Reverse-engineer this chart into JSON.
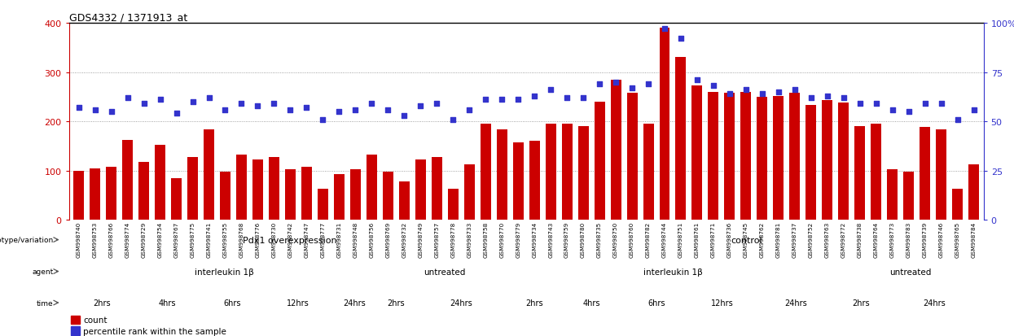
{
  "title": "GDS4332 / 1371913_at",
  "bar_color": "#cc0000",
  "dot_color": "#3333cc",
  "ylim_left": [
    0,
    400
  ],
  "ylim_right": [
    0,
    100
  ],
  "yticks_left": [
    0,
    100,
    200,
    300,
    400
  ],
  "yticks_right": [
    0,
    25,
    50,
    75,
    100
  ],
  "samples": [
    "GSM998740",
    "GSM998753",
    "GSM998766",
    "GSM998774",
    "GSM998729",
    "GSM998754",
    "GSM998767",
    "GSM998775",
    "GSM998741",
    "GSM998755",
    "GSM998768",
    "GSM998776",
    "GSM998730",
    "GSM998742",
    "GSM998747",
    "GSM998777",
    "GSM998731",
    "GSM998748",
    "GSM998756",
    "GSM998769",
    "GSM998732",
    "GSM998749",
    "GSM998757",
    "GSM998778",
    "GSM998733",
    "GSM998758",
    "GSM998770",
    "GSM998779",
    "GSM998734",
    "GSM998743",
    "GSM998759",
    "GSM998780",
    "GSM998735",
    "GSM998750",
    "GSM998760",
    "GSM998782",
    "GSM998744",
    "GSM998751",
    "GSM998761",
    "GSM998771",
    "GSM998736",
    "GSM998745",
    "GSM998762",
    "GSM998781",
    "GSM998737",
    "GSM998752",
    "GSM998763",
    "GSM998772",
    "GSM998738",
    "GSM998764",
    "GSM998773",
    "GSM998783",
    "GSM998739",
    "GSM998746",
    "GSM998765",
    "GSM998784"
  ],
  "bar_heights": [
    100,
    105,
    108,
    162,
    118,
    152,
    85,
    128,
    183,
    98,
    132,
    122,
    128,
    103,
    108,
    63,
    92,
    103,
    132,
    98,
    78,
    122,
    128,
    63,
    112,
    195,
    183,
    158,
    160,
    195,
    195,
    190,
    240,
    285,
    258,
    195,
    390,
    330,
    272,
    260,
    258,
    260,
    250,
    252,
    258,
    233,
    243,
    238,
    190,
    195,
    103,
    98,
    188,
    183,
    63,
    112
  ],
  "dot_heights_pct": [
    57,
    56,
    55,
    62,
    59,
    61,
    54,
    60,
    62,
    56,
    59,
    58,
    59,
    56,
    57,
    51,
    55,
    56,
    59,
    56,
    53,
    58,
    59,
    51,
    56,
    61,
    61,
    61,
    63,
    66,
    62,
    62,
    69,
    70,
    67,
    69,
    97,
    92,
    71,
    68,
    64,
    66,
    64,
    65,
    66,
    62,
    63,
    62,
    59,
    59,
    56,
    55,
    59,
    59,
    51,
    56
  ],
  "genotype_groups": [
    {
      "label": "Pdx1 overexpression",
      "start": 0,
      "end": 27,
      "color": "#aaddaa"
    },
    {
      "label": "control",
      "start": 27,
      "end": 56,
      "color": "#44bb44"
    }
  ],
  "agent_groups": [
    {
      "label": "interleukin 1β",
      "start": 0,
      "end": 19,
      "color": "#aaaadd"
    },
    {
      "label": "untreated",
      "start": 19,
      "end": 27,
      "color": "#7777bb"
    },
    {
      "label": "interleukin 1β",
      "start": 27,
      "end": 47,
      "color": "#aaaadd"
    },
    {
      "label": "untreated",
      "start": 47,
      "end": 56,
      "color": "#7777bb"
    }
  ],
  "time_groups": [
    {
      "label": "2hrs",
      "start": 0,
      "end": 4,
      "color": "#ffcccc"
    },
    {
      "label": "4hrs",
      "start": 4,
      "end": 8,
      "color": "#f0a0a0"
    },
    {
      "label": "6hrs",
      "start": 8,
      "end": 12,
      "color": "#e07070"
    },
    {
      "label": "12hrs",
      "start": 12,
      "end": 16,
      "color": "#cc5555"
    },
    {
      "label": "24hrs",
      "start": 16,
      "end": 19,
      "color": "#bb4444"
    },
    {
      "label": "2hrs",
      "start": 19,
      "end": 21,
      "color": "#ffcccc"
    },
    {
      "label": "24hrs",
      "start": 21,
      "end": 27,
      "color": "#bb4444"
    },
    {
      "label": "2hrs",
      "start": 27,
      "end": 30,
      "color": "#ffcccc"
    },
    {
      "label": "4hrs",
      "start": 30,
      "end": 34,
      "color": "#f0a0a0"
    },
    {
      "label": "6hrs",
      "start": 34,
      "end": 38,
      "color": "#e07070"
    },
    {
      "label": "12hrs",
      "start": 38,
      "end": 42,
      "color": "#cc5555"
    },
    {
      "label": "24hrs",
      "start": 42,
      "end": 47,
      "color": "#bb4444"
    },
    {
      "label": "2hrs",
      "start": 47,
      "end": 50,
      "color": "#ffcccc"
    },
    {
      "label": "24hrs",
      "start": 50,
      "end": 56,
      "color": "#bb4444"
    }
  ],
  "background_color": "#ffffff",
  "grid_color": "#888888",
  "left_axis_color": "#cc0000",
  "right_axis_color": "#3333cc",
  "separator_col": 27
}
